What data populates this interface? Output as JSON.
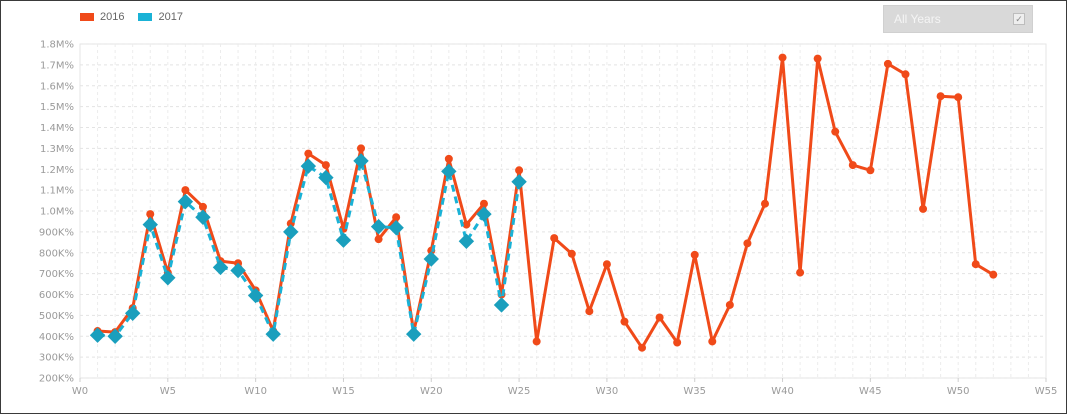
{
  "legend": {
    "items": [
      {
        "label": "2016",
        "color": "#f04a19"
      },
      {
        "label": "2017",
        "color": "#1ab2d6"
      }
    ]
  },
  "filter": {
    "label": "All Years",
    "checked": true,
    "check_icon": "check-icon"
  },
  "chart_data": {
    "type": "line",
    "title": "",
    "xlabel": "",
    "ylabel": "",
    "grid": true,
    "legend_placement": "top-left",
    "xlim": [
      0,
      55
    ],
    "ylim": [
      200000,
      1800000
    ],
    "x_ticks": [
      {
        "value": 0,
        "label": "W0"
      },
      {
        "value": 5,
        "label": "W5"
      },
      {
        "value": 10,
        "label": "W10"
      },
      {
        "value": 15,
        "label": "W15"
      },
      {
        "value": 20,
        "label": "W20"
      },
      {
        "value": 25,
        "label": "W25"
      },
      {
        "value": 30,
        "label": "W30"
      },
      {
        "value": 35,
        "label": "W35"
      },
      {
        "value": 40,
        "label": "W40"
      },
      {
        "value": 45,
        "label": "W45"
      },
      {
        "value": 50,
        "label": "W50"
      },
      {
        "value": 55,
        "label": "W55"
      }
    ],
    "y_ticks": [
      {
        "value": 200000,
        "label": "200K%"
      },
      {
        "value": 300000,
        "label": "300K%"
      },
      {
        "value": 400000,
        "label": "400K%"
      },
      {
        "value": 500000,
        "label": "500K%"
      },
      {
        "value": 600000,
        "label": "600K%"
      },
      {
        "value": 700000,
        "label": "700K%"
      },
      {
        "value": 800000,
        "label": "800K%"
      },
      {
        "value": 900000,
        "label": "900K%"
      },
      {
        "value": 1000000,
        "label": "1.0M%"
      },
      {
        "value": 1100000,
        "label": "1.1M%"
      },
      {
        "value": 1200000,
        "label": "1.2M%"
      },
      {
        "value": 1300000,
        "label": "1.3M%"
      },
      {
        "value": 1400000,
        "label": "1.4M%"
      },
      {
        "value": 1500000,
        "label": "1.5M%"
      },
      {
        "value": 1600000,
        "label": "1.6M%"
      },
      {
        "value": 1700000,
        "label": "1.7M%"
      },
      {
        "value": 1800000,
        "label": "1.8M%"
      }
    ],
    "series": [
      {
        "name": "2016",
        "color": "#f04a19",
        "marker": "circle",
        "line_style": "solid",
        "x": [
          1,
          2,
          3,
          4,
          5,
          6,
          7,
          8,
          9,
          10,
          11,
          12,
          13,
          14,
          15,
          16,
          17,
          18,
          19,
          20,
          21,
          22,
          23,
          24,
          25,
          26,
          27,
          28,
          29,
          30,
          31,
          32,
          33,
          34,
          35,
          36,
          37,
          38,
          39,
          40,
          41,
          42,
          43,
          44,
          45,
          46,
          47,
          48,
          49,
          50,
          51,
          52
        ],
        "values": [
          425000,
          420000,
          535000,
          985000,
          705000,
          1100000,
          1020000,
          760000,
          750000,
          620000,
          425000,
          940000,
          1275000,
          1220000,
          915000,
          1300000,
          865000,
          970000,
          420000,
          810000,
          1250000,
          935000,
          1035000,
          600000,
          1195000,
          375000,
          870000,
          795000,
          520000,
          745000,
          470000,
          345000,
          490000,
          370000,
          790000,
          375000,
          550000,
          845000,
          1035000,
          1735000,
          705000,
          1730000,
          1380000,
          1220000,
          1195000,
          1705000,
          1655000,
          1010000,
          1550000,
          1545000,
          745000,
          695000
        ]
      },
      {
        "name": "2017",
        "color": "#1ab2d6",
        "marker": "diamond",
        "line_style": "dashed",
        "x": [
          1,
          2,
          3,
          4,
          5,
          6,
          7,
          8,
          9,
          10,
          11,
          12,
          13,
          14,
          15,
          16,
          17,
          18,
          19,
          20,
          21,
          22,
          23,
          24,
          25
        ],
        "values": [
          405000,
          400000,
          510000,
          935000,
          680000,
          1045000,
          970000,
          730000,
          715000,
          595000,
          410000,
          900000,
          1215000,
          1160000,
          860000,
          1240000,
          925000,
          920000,
          410000,
          770000,
          1190000,
          855000,
          985000,
          550000,
          1140000
        ]
      }
    ]
  }
}
